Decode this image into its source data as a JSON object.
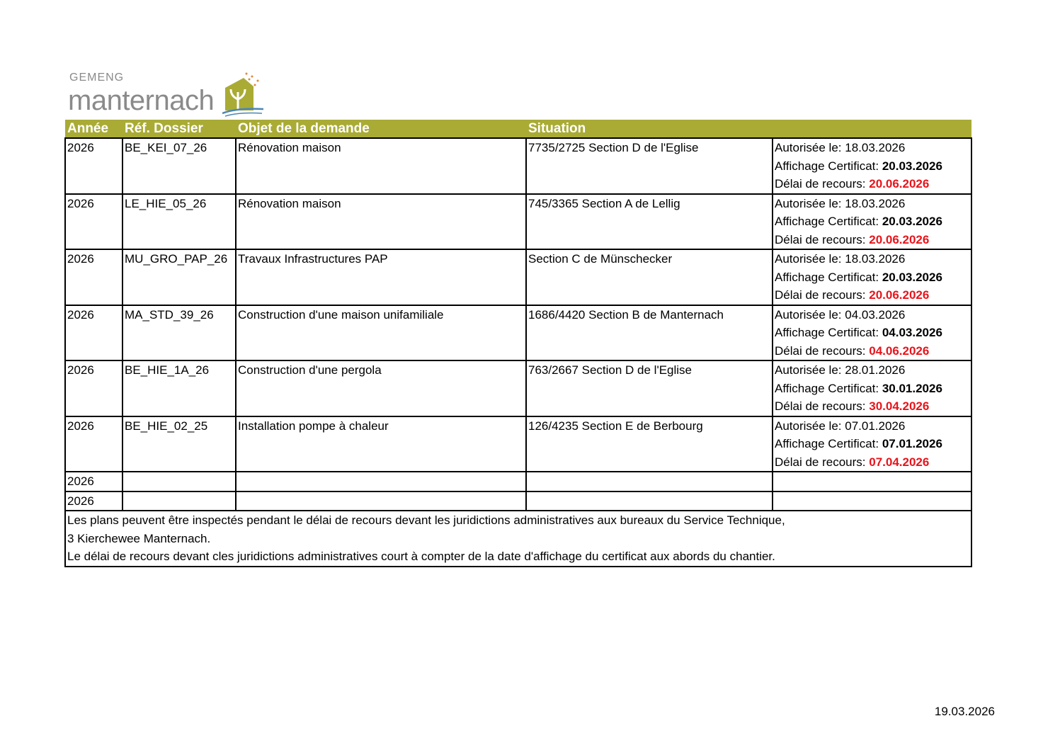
{
  "logo": {
    "line1": "GEMENG",
    "line2": "manternach",
    "colors": {
      "text": "#8a8a8a",
      "tree": "#a9ab35",
      "water": "#4a86b5",
      "dots": "#d98a3a"
    }
  },
  "table": {
    "header_color": "#a9ab35",
    "headers": [
      "Année",
      "Réf. Dossier",
      "Objet de la demande",
      "Situation",
      ""
    ],
    "labels": {
      "autorisee": "Autorisée le: ",
      "affichage": "Affichage Certificat: ",
      "delai": "Délai de recours: "
    },
    "rows": [
      {
        "annee": "2026",
        "ref": "BE_KEI_07_26",
        "objet": "Rénovation maison",
        "situation": "7735/2725 Section D de l'Eglise",
        "autorisee": "18.03.2026",
        "affichage": "20.03.2026",
        "delai": "20.06.2026"
      },
      {
        "annee": "2026",
        "ref": "LE_HIE_05_26",
        "objet": "Rénovation maison",
        "situation": "745/3365 Section A de Lellig",
        "autorisee": "18.03.2026",
        "affichage": "20.03.2026",
        "delai": "20.06.2026"
      },
      {
        "annee": "2026",
        "ref": "MU_GRO_PAP_26",
        "objet": "Travaux Infrastructures PAP",
        "situation": "Section C de Münschecker",
        "autorisee": "18.03.2026",
        "affichage": "20.03.2026",
        "delai": "20.06.2026"
      },
      {
        "annee": "2026",
        "ref": "MA_STD_39_26",
        "objet": "Construction d'une maison unifamiliale",
        "situation": "1686/4420 Section B de Manternach",
        "autorisee": "04.03.2026",
        "affichage": "04.03.2026",
        "delai": "04.06.2026"
      },
      {
        "annee": "2026",
        "ref": "BE_HIE_1A_26",
        "objet": "Construction d'une pergola",
        "situation": "763/2667 Section D de l'Eglise",
        "autorisee": "28.01.2026",
        "affichage": "30.01.2026",
        "delai": "30.04.2026"
      },
      {
        "annee": "2026",
        "ref": "BE_HIE_02_25",
        "objet": "Installation pompe à chaleur",
        "situation": "126/4235 Section E de Berbourg",
        "autorisee": "07.01.2026",
        "affichage": "07.01.2026",
        "delai": "07.04.2026"
      }
    ],
    "empty_rows": [
      "2026",
      "2026"
    ],
    "footer": [
      "Les plans peuvent être inspectés pendant le délai de recours devant les juridictions administratives aux bureaux du Service Technique,",
      "3 Kierchewee Manternach.",
      "Le délai de recours devant cles juridictions administratives court à compter de la date d'affichage du certificat aux abords du chantier."
    ]
  },
  "page_date": "19.03.2026"
}
